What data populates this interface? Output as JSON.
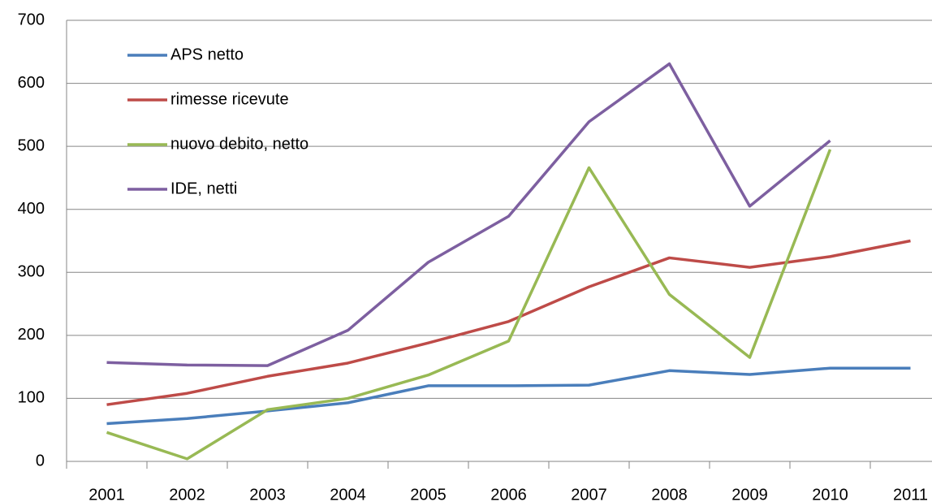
{
  "chart_data": {
    "type": "line",
    "categories": [
      "2001",
      "2002",
      "2003",
      "2004",
      "2005",
      "2006",
      "2007",
      "2008",
      "2009",
      "2010",
      "2011"
    ],
    "series": [
      {
        "name": "APS netto",
        "color": "#4a7ebb",
        "values": [
          60,
          68,
          80,
          93,
          120,
          120,
          121,
          144,
          138,
          148,
          148
        ]
      },
      {
        "name": "rimesse ricevute",
        "color": "#be4b48",
        "values": [
          90,
          108,
          135,
          156,
          188,
          222,
          277,
          323,
          308,
          325,
          350
        ]
      },
      {
        "name": "nuovo debito, netto",
        "color": "#98b954",
        "values": [
          46,
          4,
          82,
          100,
          137,
          191,
          466,
          265,
          165,
          495,
          null
        ]
      },
      {
        "name": "IDE, netti",
        "color": "#7d5fa0",
        "values": [
          157,
          153,
          152,
          208,
          316,
          389,
          539,
          631,
          405,
          509,
          null
        ]
      }
    ],
    "ylim": [
      0,
      700
    ],
    "yticks": [
      0,
      100,
      200,
      300,
      400,
      500,
      600,
      700
    ],
    "grid": true,
    "legend": "upper left"
  }
}
